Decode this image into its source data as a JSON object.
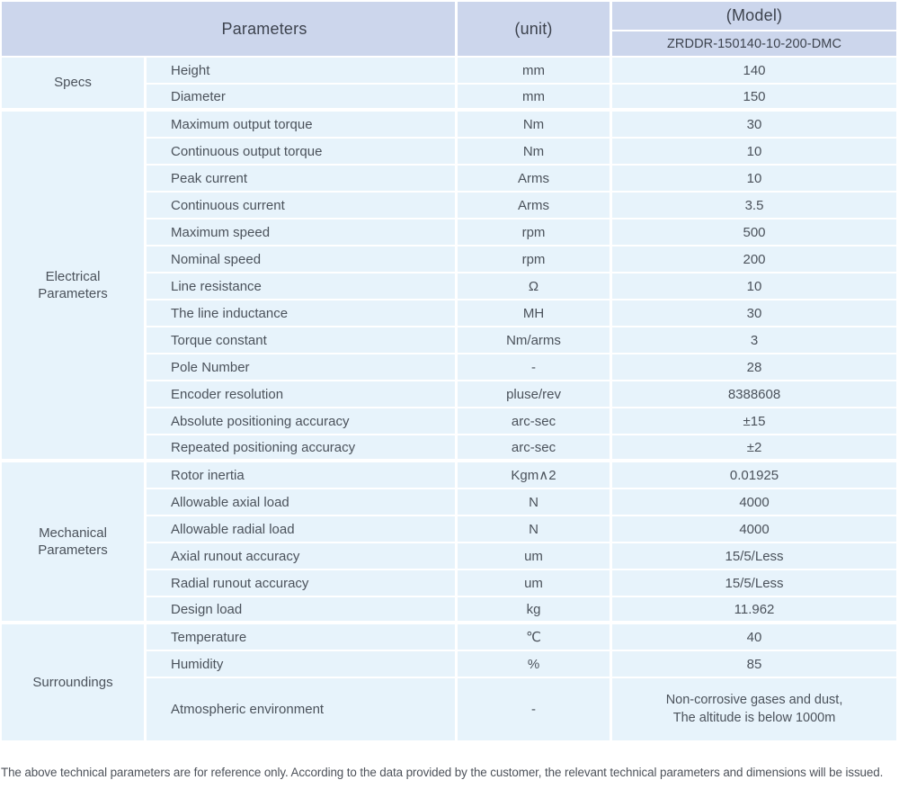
{
  "table": {
    "header": {
      "parameters": "Parameters",
      "unit": "(unit)",
      "model": "(Model)",
      "model_number": "ZRDDR-150140-10-200-DMC"
    },
    "sections": [
      {
        "name": "Specs",
        "rows": [
          {
            "param": "Height",
            "unit": "mm",
            "value": "140"
          },
          {
            "param": "Diameter",
            "unit": "mm",
            "value": "150"
          }
        ]
      },
      {
        "name": "Electrical\nParameters",
        "rows": [
          {
            "param": "Maximum output torque",
            "unit": "Nm",
            "value": "30"
          },
          {
            "param": "Continuous output torque",
            "unit": "Nm",
            "value": "10"
          },
          {
            "param": "Peak current",
            "unit": "Arms",
            "value": "10"
          },
          {
            "param": "Continuous current",
            "unit": "Arms",
            "value": "3.5"
          },
          {
            "param": "Maximum speed",
            "unit": "rpm",
            "value": "500"
          },
          {
            "param": "Nominal speed",
            "unit": "rpm",
            "value": "200"
          },
          {
            "param": "Line resistance",
            "unit": "Ω",
            "value": "10"
          },
          {
            "param": "The line inductance",
            "unit": "MH",
            "value": "30"
          },
          {
            "param": "Torque constant",
            "unit": "Nm/arms",
            "value": "3"
          },
          {
            "param": "Pole Number",
            "unit": "-",
            "value": "28"
          },
          {
            "param": "Encoder resolution",
            "unit": "pluse/rev",
            "value": "8388608"
          },
          {
            "param": "Absolute positioning accuracy",
            "unit": "arc-sec",
            "value": "±15"
          },
          {
            "param": "Repeated positioning accuracy",
            "unit": "arc-sec",
            "value": "±2"
          }
        ]
      },
      {
        "name": "Mechanical\nParameters",
        "rows": [
          {
            "param": "Rotor inertia",
            "unit": "Kgm∧2",
            "value": "0.01925"
          },
          {
            "param": "Allowable axial load",
            "unit": "N",
            "value": "4000"
          },
          {
            "param": "Allowable radial load",
            "unit": "N",
            "value": "4000"
          },
          {
            "param": "Axial runout accuracy",
            "unit": "um",
            "value": "15/5/Less"
          },
          {
            "param": "Radial runout accuracy",
            "unit": "um",
            "value": "15/5/Less"
          },
          {
            "param": "Design load",
            "unit": "kg",
            "value": "11.962"
          }
        ]
      },
      {
        "name": "Surroundings",
        "rows": [
          {
            "param": "Temperature",
            "unit": "℃",
            "value": "40"
          },
          {
            "param": "Humidity",
            "unit": "%",
            "value": "85"
          },
          {
            "param": "Atmospheric environment",
            "unit": "-",
            "value": "Non-corrosive gases and dust,\nThe altitude is below 1000m",
            "tall": true
          }
        ]
      }
    ]
  },
  "footer": {
    "note": "The above technical parameters are for reference only. According to the data provided by the customer, the relevant technical parameters and dimensions will be issued."
  },
  "colors": {
    "header_bg": "#ccd6ec",
    "row_bg": "#e7f3fb",
    "divider": "#ffffff",
    "header_text": "#3d434e",
    "body_text": "#4b525b"
  }
}
